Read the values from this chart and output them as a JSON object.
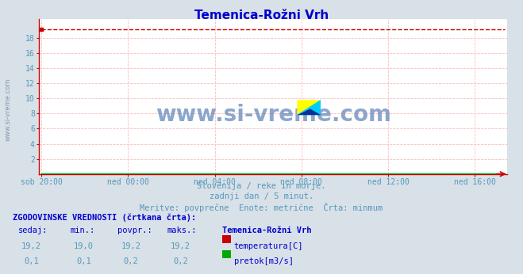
{
  "title": "Temenica-Rožni Vrh",
  "title_color": "#0000cc",
  "bg_color": "#d8e0e8",
  "plot_bg_color": "#ffffff",
  "watermark": "www.si-vreme.com",
  "watermark_color": "#6688bb",
  "subtitle_line1": "Slovenija / reke in morje.",
  "subtitle_line2": "zadnji dan / 5 minut.",
  "subtitle_line3": "Meritve: povprečne  Enote: metrične  Črta: minmum",
  "subtitle_color": "#5599bb",
  "xlabel_color": "#5599bb",
  "ytick_color": "#5599bb",
  "xtick_labels": [
    "sob 20:00",
    "ned 00:00",
    "ned 04:00",
    "ned 08:00",
    "ned 12:00",
    "ned 16:00"
  ],
  "xtick_positions": [
    0,
    4,
    8,
    12,
    16,
    20
  ],
  "xlim": [
    -0.1,
    21.5
  ],
  "ylim": [
    0,
    20.5
  ],
  "ytick_positions": [
    2,
    4,
    6,
    8,
    10,
    12,
    14,
    16,
    18
  ],
  "ytick_labels": [
    "2",
    "4",
    "6",
    "8",
    "10",
    "12",
    "14",
    "16",
    "18"
  ],
  "grid_color": "#ffbbbb",
  "axis_color": "#cc0000",
  "temp_value": 19.2,
  "temp_color": "#cc0000",
  "flow_value": 0.1,
  "flow_color": "#00aa00",
  "table_header": "ZGODOVINSKE VREDNOSTI (črtkana črta):",
  "table_col1_header": "sedaj:",
  "table_col2_header": "min.:",
  "table_col3_header": "povpr.:",
  "table_col4_header": "maks.:",
  "table_col5_header": "Temenica-Rožni Vrh",
  "temp_row": [
    "19,2",
    "19,0",
    "19,2",
    "19,2"
  ],
  "flow_row": [
    "0,1",
    "0,1",
    "0,2",
    "0,2"
  ],
  "temp_label": "temperatura[C]",
  "flow_label": "pretok[m3/s]",
  "left_label": "www.si-vreme.com",
  "left_label_color": "#8899aa"
}
